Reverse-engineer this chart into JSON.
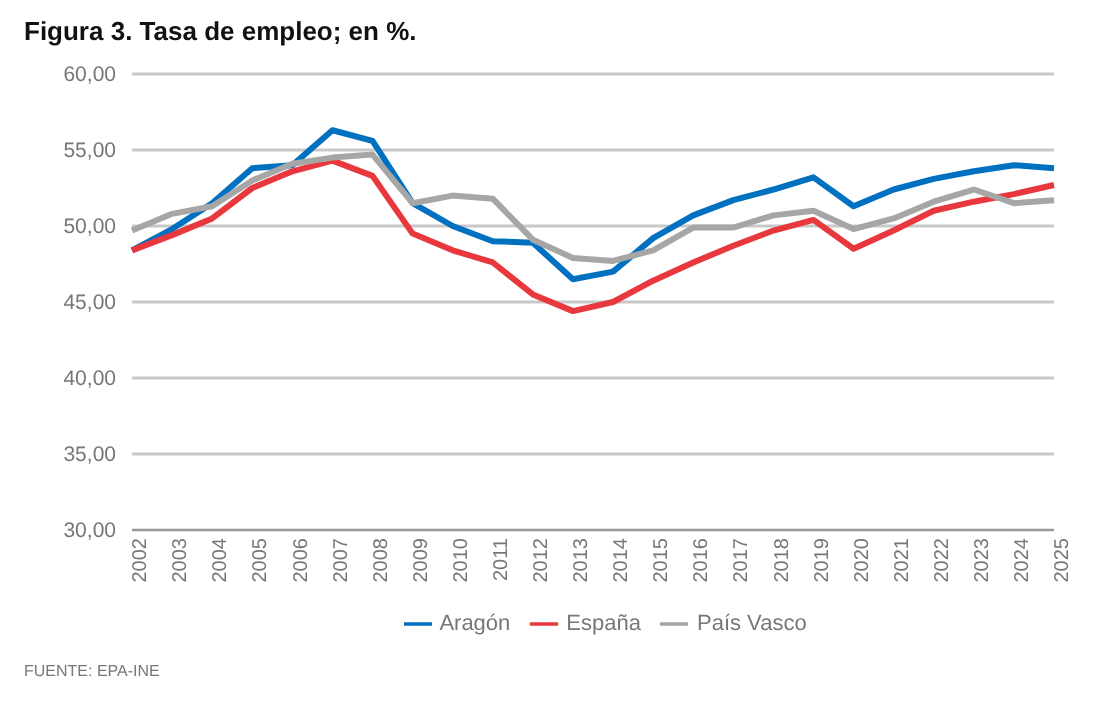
{
  "chart_data": {
    "type": "line",
    "title": "Figura 3. Tasa de empleo; en %.",
    "categories": [
      "2002",
      "2003",
      "2004",
      "2005",
      "2006",
      "2007",
      "2008",
      "2009",
      "2010",
      "2011",
      "2012",
      "2013",
      "2014",
      "2015",
      "2016",
      "2017",
      "2018",
      "2019",
      "2020",
      "2021",
      "2022",
      "2023",
      "2024",
      "2025"
    ],
    "series": [
      {
        "name": "Aragón",
        "color": "#0070c0",
        "values": [
          48.4,
          49.8,
          51.5,
          53.8,
          54.0,
          56.3,
          55.6,
          51.5,
          50.0,
          49.0,
          48.9,
          46.5,
          47.0,
          49.2,
          50.7,
          51.7,
          52.4,
          53.2,
          51.3,
          52.4,
          53.1,
          53.6,
          54.0,
          53.8
        ]
      },
      {
        "name": "España",
        "color": "#e8383d",
        "values": [
          48.4,
          49.4,
          50.5,
          52.5,
          53.6,
          54.3,
          53.3,
          49.5,
          48.4,
          47.6,
          45.5,
          44.4,
          45.0,
          46.4,
          47.6,
          48.7,
          49.7,
          50.4,
          48.5,
          49.7,
          51.0,
          51.6,
          52.1,
          52.7
        ]
      },
      {
        "name": "País Vasco",
        "color": "#a6a6a6",
        "values": [
          49.7,
          50.8,
          51.3,
          53.0,
          54.1,
          54.5,
          54.7,
          51.5,
          52.0,
          51.8,
          49.1,
          47.9,
          47.7,
          48.4,
          49.9,
          49.9,
          50.7,
          51.0,
          49.8,
          50.5,
          51.6,
          52.4,
          51.5,
          51.7
        ]
      }
    ],
    "ylim": [
      30,
      60
    ],
    "yticks": [
      {
        "value": 30,
        "label": "30,00"
      },
      {
        "value": 35,
        "label": "35,00"
      },
      {
        "value": 40,
        "label": "40,00"
      },
      {
        "value": 45,
        "label": "45,00"
      },
      {
        "value": 50,
        "label": "50,00"
      },
      {
        "value": 55,
        "label": "55,00"
      },
      {
        "value": 60,
        "label": "60,00"
      }
    ],
    "grid": "y",
    "legend": "bottom",
    "marker": "none",
    "line_style": "solid",
    "annotations": [
      "FUENTE: EPA-INE"
    ]
  }
}
